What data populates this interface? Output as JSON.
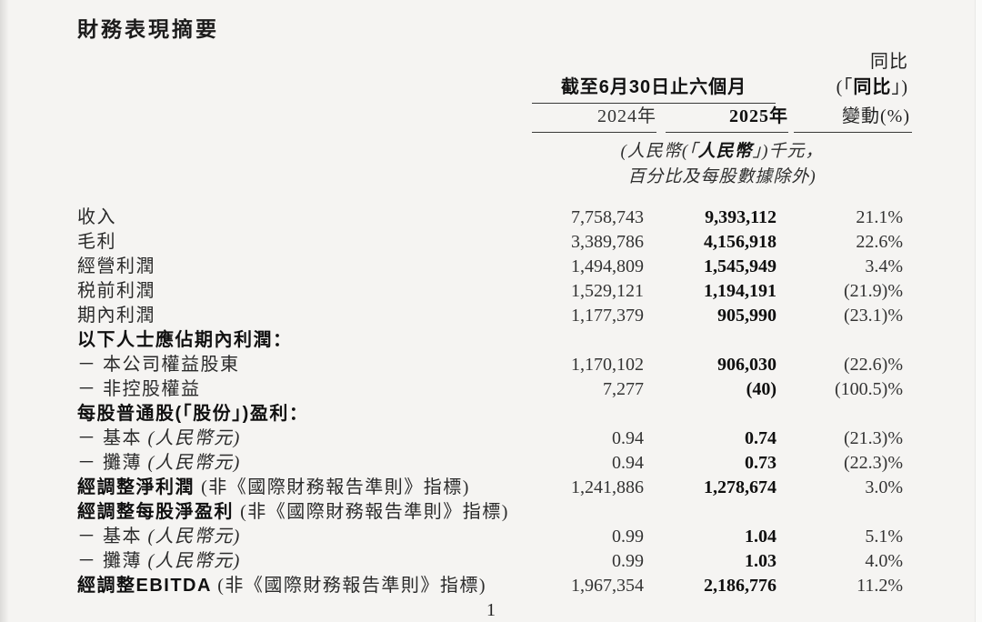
{
  "title": "財務表現摘要",
  "page_number": "1",
  "table": {
    "header": {
      "yoy_top": "同比",
      "yoy_paren_open": "(「",
      "yoy_paren_bold": "同比",
      "yoy_paren_close": "」)",
      "yoy_bottom": "變動(%)",
      "period": "截至6月30日止六個月",
      "col_2024": "2024年",
      "col_2025": "2025年"
    },
    "note": {
      "line1_a": "(人民幣(「",
      "line1_b": "人民幣",
      "line1_c": "」)千元，",
      "line2": "百分比及每股數據除外)"
    },
    "rows": [
      {
        "label_regular": "收入",
        "v2024": "7,758,743",
        "v2025": "9,393,112",
        "yoy": "21.1%"
      },
      {
        "label_regular": "毛利",
        "v2024": "3,389,786",
        "v2025": "4,156,918",
        "yoy": "22.6%"
      },
      {
        "label_regular": "經營利潤",
        "v2024": "1,494,809",
        "v2025": "1,545,949",
        "yoy": "3.4%"
      },
      {
        "label_regular": "税前利潤",
        "v2024": "1,529,121",
        "v2025": "1,194,191",
        "yoy": "(21.9)%"
      },
      {
        "label_regular": "期內利潤",
        "v2024": "1,177,379",
        "v2025": "905,990",
        "yoy": "(23.1)%"
      },
      {
        "label_bold": "以下人士應佔期內利潤：",
        "v2024": "",
        "v2025": "",
        "yoy": ""
      },
      {
        "label_regular": "－ 本公司權益股東",
        "v2024": "1,170,102",
        "v2025": "906,030",
        "yoy": "(22.6)%"
      },
      {
        "label_regular": "－ 非控股權益",
        "v2024": "7,277",
        "v2025": "(40)",
        "yoy": "(100.5)%"
      },
      {
        "label_bold": "每股普通股(「股份」)盈利：",
        "v2024": "",
        "v2025": "",
        "yoy": ""
      },
      {
        "label_regular": "－ 基本 ",
        "label_italic": "(人民幣元)",
        "v2024": "0.94",
        "v2025": "0.74",
        "yoy": "(21.3)%"
      },
      {
        "label_regular": "－ 攤薄 ",
        "label_italic": "(人民幣元)",
        "v2024": "0.94",
        "v2025": "0.73",
        "yoy": "(22.3)%"
      },
      {
        "label_bold": "經調整淨利潤 ",
        "label_regular": "(非《國際財務報告準則》指標)",
        "v2024": "1,241,886",
        "v2025": "1,278,674",
        "yoy": "3.0%"
      },
      {
        "label_bold": "經調整每股淨盈利 ",
        "label_regular": "(非《國際財務報告準則》指標)",
        "v2024": "",
        "v2025": "",
        "yoy": ""
      },
      {
        "label_regular": "－ 基本 ",
        "label_italic": "(人民幣元)",
        "v2024": "0.99",
        "v2025": "1.04",
        "yoy": "5.1%"
      },
      {
        "label_regular": "－ 攤薄 ",
        "label_italic": "(人民幣元)",
        "v2024": "0.99",
        "v2025": "1.03",
        "yoy": "4.0%"
      },
      {
        "label_bold": "經調整EBITDA ",
        "label_regular": "(非《國際財務報告準則》指標)",
        "v2024": "1,967,354",
        "v2025": "2,186,776",
        "yoy": "11.2%"
      }
    ]
  }
}
